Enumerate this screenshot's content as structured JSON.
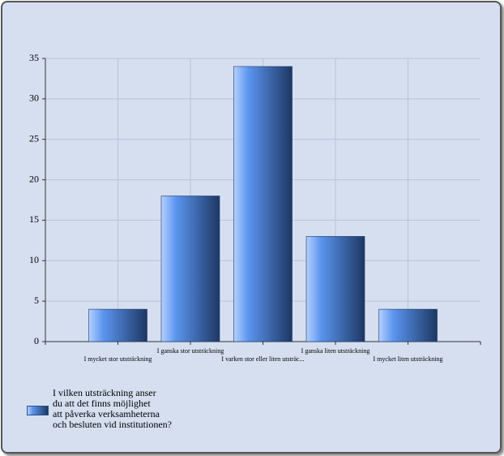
{
  "chart_data": {
    "type": "bar",
    "categories": [
      "I mycket stor utsträckning",
      "I ganska stor utsträckning",
      "I varken stor eller liten utsträc...",
      "I ganska liten utsträckning",
      "I mycket liten utsträckning"
    ],
    "series": [
      {
        "name": "I vilken utsträckning anser\ndu att det finns möjlighet\natt påverka verksamheterna\noch besluten vid institutionen?",
        "color": "#5b95ee",
        "values": [
          4,
          18,
          34,
          13,
          4
        ]
      }
    ],
    "ylim": [
      0,
      35
    ],
    "yticks": [
      0,
      5,
      10,
      15,
      20,
      25,
      30,
      35
    ],
    "grid": true,
    "legend": "bottom-left"
  }
}
